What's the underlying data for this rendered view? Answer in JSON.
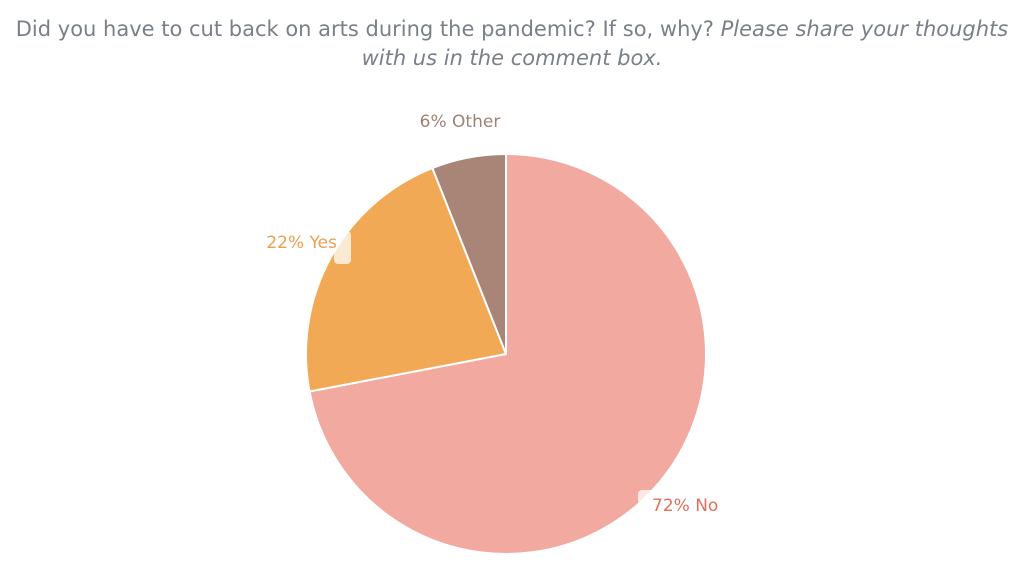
{
  "chart_data": {
    "type": "pie",
    "title": "Did you have to cut back on arts during the pandemic? If so, why?",
    "title_note": "Please share your thoughts with us in the comment box.",
    "slices": [
      {
        "name": "No",
        "value": 72,
        "label": "72% No",
        "color": "#f2a9a0",
        "label_color": "#e0705f"
      },
      {
        "name": "Yes",
        "value": 22,
        "label": "22% Yes",
        "color": "#f2a955",
        "label_color": "#eba050"
      },
      {
        "name": "Other",
        "value": 6,
        "label": "6% Other",
        "color": "#a98577",
        "label_color": "#a08275"
      }
    ],
    "start_angle": "12 o'clock",
    "direction": "clockwise",
    "legend": "none",
    "labels": "outside"
  }
}
